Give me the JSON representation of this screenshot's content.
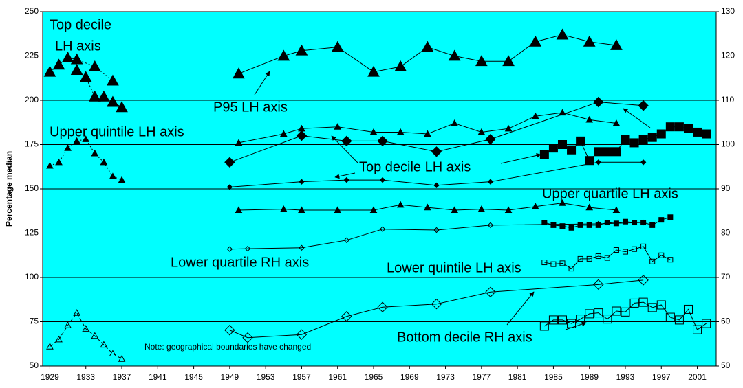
{
  "chart_data": {
    "type": "line",
    "y_label": "Percentage median",
    "xlim": [
      1928.2,
      2003.1
    ],
    "xticks": [
      1929,
      1933,
      1937,
      1941,
      1945,
      1949,
      1953,
      1957,
      1961,
      1965,
      1969,
      1973,
      1977,
      1981,
      1985,
      1989,
      1993,
      1997,
      2001
    ],
    "ylim": [
      50,
      250
    ],
    "yticks": [
      50,
      75,
      100,
      125,
      150,
      175,
      200,
      225,
      250
    ],
    "y2lim": [
      50,
      130
    ],
    "y2ticks": [
      50,
      60,
      70,
      80,
      90,
      100,
      110,
      120,
      130
    ],
    "grid": true,
    "background": "#00ffff",
    "series": [
      {
        "color": "#000000",
        "marker": "triangle-large",
        "line": "dotted",
        "x": [
          1929,
          1930,
          1931,
          1932,
          1934,
          1936
        ],
        "values": [
          216,
          220,
          224,
          223,
          219,
          211
        ]
      },
      {
        "color": "#000000",
        "marker": "triangle-large",
        "line": "dotted",
        "x": [
          1932,
          1933,
          1934,
          1935,
          1936,
          1937
        ],
        "values": [
          217,
          213,
          202,
          202,
          199,
          196
        ]
      },
      {
        "color": "#000000",
        "marker": "triangle-small",
        "line": "dotted",
        "x": [
          1929,
          1930,
          1931,
          1932,
          1933,
          1934,
          1935,
          1936,
          1937
        ],
        "values": [
          163,
          165,
          173,
          177,
          178,
          170,
          165,
          157,
          155
        ]
      },
      {
        "color": "#000000",
        "marker": "triangle-open-small",
        "line": "dashed",
        "x": [
          1929,
          1930,
          1931,
          1932,
          1933,
          1934,
          1935,
          1936,
          1937
        ],
        "values": [
          61,
          65,
          73,
          80,
          71,
          67,
          62,
          57,
          54
        ]
      },
      {
        "color": "#000000",
        "marker": "triangle-large",
        "line": "solid",
        "x": [
          1950,
          1955,
          1957,
          1961,
          1965,
          1968,
          1971,
          1974,
          1977,
          1980,
          1983,
          1986,
          1989,
          1992
        ],
        "values": [
          215,
          225,
          228,
          230,
          216,
          219,
          230,
          225,
          222,
          222,
          233,
          237,
          233,
          231
        ]
      },
      {
        "color": "#000000",
        "marker": "triangle-small",
        "line": "solid",
        "x": [
          1950,
          1955,
          1957,
          1961,
          1965,
          1968,
          1971,
          1974,
          1977,
          1980,
          1983,
          1986,
          1989,
          1992
        ],
        "values": [
          176,
          181,
          184,
          185,
          182,
          182,
          181,
          187,
          182,
          184,
          191,
          193,
          189,
          187
        ]
      },
      {
        "color": "#000000",
        "marker": "diamond-large",
        "line": "solid",
        "x": [
          1949,
          1957,
          1962,
          1966,
          1972,
          1978,
          1990,
          1995
        ],
        "values": [
          165,
          180,
          177,
          177,
          171,
          178,
          199,
          197
        ]
      },
      {
        "color": "#000000",
        "marker": "diamond-small",
        "line": "solid",
        "x": [
          1949,
          1957,
          1962,
          1966,
          1972,
          1978,
          1990,
          1995
        ],
        "values": [
          151,
          154,
          155,
          155,
          152,
          154,
          165,
          165
        ]
      },
      {
        "color": "#000000",
        "marker": "square-large",
        "line": "solid",
        "x": [
          1984,
          1985,
          1986,
          1987,
          1988,
          1989,
          1990,
          1991,
          1992,
          1993,
          1994,
          1995,
          1996,
          1997,
          1998,
          1999,
          2000,
          2001,
          2002
        ],
        "values": [
          169.5,
          173,
          175,
          172,
          177,
          166,
          171,
          171,
          171,
          178,
          176,
          178,
          179,
          181,
          185,
          185,
          184,
          182,
          181
        ]
      },
      {
        "color": "#000000",
        "marker": "triangle-small",
        "line": "solid",
        "x": [
          1950,
          1955,
          1957,
          1961,
          1965,
          1968,
          1971,
          1974,
          1977,
          1980,
          1983,
          1986,
          1989,
          1992
        ],
        "values": [
          138,
          138.5,
          138,
          138,
          138,
          141,
          139.5,
          138,
          138.5,
          138,
          140,
          142,
          139.5,
          138
        ]
      },
      {
        "color": "#000000",
        "marker": "square-small",
        "line": "solid",
        "x": [
          1984,
          1985,
          1986,
          1987,
          1988,
          1989,
          1990,
          1991,
          1992,
          1993,
          1994,
          1995,
          1996,
          1997,
          1998
        ],
        "values": [
          131,
          129.5,
          129,
          128,
          129.5,
          129.5,
          129.5,
          131,
          130.5,
          131.5,
          131,
          131,
          129.5,
          132.5,
          134
        ]
      },
      {
        "color": "#000000",
        "marker": "diamond-open-small",
        "line": "solid",
        "axis": "y2",
        "x": [
          1949,
          1951,
          1957,
          1962,
          1966,
          1972,
          1978,
          1990,
          1995
        ],
        "values": [
          76.4,
          76.5,
          76.7,
          78.4,
          80.9,
          80.7,
          81.8,
          82.1,
          82.4
        ]
      },
      {
        "color": "#000000",
        "marker": "square-open-small",
        "line": "solid",
        "x": [
          1984,
          1985,
          1986,
          1987,
          1988,
          1989,
          1990,
          1991,
          1992,
          1993,
          1994,
          1995,
          1996,
          1997,
          1998
        ],
        "values": [
          108.5,
          107.5,
          108,
          105,
          110.5,
          110.5,
          112,
          111,
          115.5,
          114.5,
          116,
          117.5,
          109,
          112.5,
          110
        ]
      },
      {
        "color": "#000000",
        "marker": "diamond-open-large",
        "line": "solid",
        "axis": "y2",
        "x": [
          1949,
          1951,
          1957,
          1962,
          1966,
          1972,
          1978,
          1990,
          1995
        ],
        "values": [
          58.1,
          56.4,
          57.1,
          61.2,
          63.3,
          64,
          66.7,
          68.4,
          69.4
        ]
      },
      {
        "color": "#000000",
        "marker": "square-open-large",
        "line": "solid",
        "x": [
          1984,
          1985,
          1986,
          1987,
          1988,
          1989,
          1990,
          1991,
          1992,
          1993,
          1994,
          1995,
          1996,
          1997,
          1998,
          1999,
          2000,
          2001,
          2002
        ],
        "values": [
          72.5,
          76,
          76,
          74,
          76.5,
          79.5,
          80,
          76.5,
          81,
          80.5,
          85.5,
          86,
          83,
          84.5,
          77.5,
          76,
          82,
          70.5,
          74
        ]
      }
    ],
    "annotations": [
      "Top decile",
      "LH axis",
      "P95 LH axis",
      "Upper quintile LH axis",
      "Top decile LH axis",
      "Upper quartile LH axis",
      "Lower quartile RH axis",
      "Lower quintile LH axis",
      "Bottom decile RH axis",
      "Note: geographical boundaries have changed"
    ]
  }
}
